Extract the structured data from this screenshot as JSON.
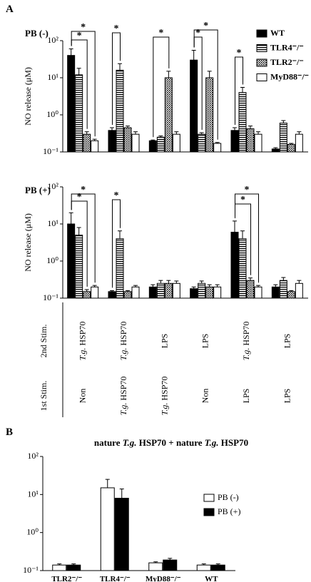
{
  "panel_labels": [
    "A",
    "B"
  ],
  "chart_data": [
    {
      "type": "bar",
      "title": "PB (-)",
      "ylabel": "NO release (μM)",
      "log_scale": true,
      "legend": "upper right",
      "ylim": [
        0.1,
        100
      ],
      "yticks": [
        {
          "value": 0.1,
          "label": "10⁻¹"
        },
        {
          "value": 1,
          "label": "10⁰"
        },
        {
          "value": 10,
          "label": "10¹"
        },
        {
          "value": 100,
          "label": "10²"
        }
      ],
      "series": [
        {
          "name": "WT",
          "color": "#000000",
          "values": [
            40,
            0.38,
            0.2,
            30,
            0.38,
            0.12
          ],
          "errors": [
            20,
            0.07,
            0.01,
            25,
            0.07,
            0.01
          ]
        },
        {
          "name": "TLR4⁻/⁻",
          "color": "#000000",
          "pattern": "hstripe",
          "values": [
            12,
            16,
            0.25,
            0.3,
            4,
            0.6
          ],
          "errors": [
            6,
            8,
            0.02,
            0.03,
            1.5,
            0.1
          ]
        },
        {
          "name": "TLR2⁻/⁻",
          "color": "#000000",
          "pattern": "dots",
          "values": [
            0.3,
            0.45,
            10,
            10,
            0.42,
            0.16
          ],
          "errors": [
            0.05,
            0.05,
            5,
            5,
            0.08,
            0.01
          ]
        },
        {
          "name": "MyD88⁻/⁻",
          "color": "#ffffff",
          "values": [
            0.2,
            0.3,
            0.3,
            0.17,
            0.3,
            0.3
          ],
          "errors": [
            0.02,
            0.05,
            0.05,
            0.01,
            0.05,
            0.05
          ]
        }
      ],
      "annotations": [
        "*",
        "*",
        "*",
        "*",
        "*",
        "*",
        "*"
      ]
    },
    {
      "type": "bar",
      "title": "PB (+)",
      "ylabel": "NO release (μM)",
      "log_scale": true,
      "ylim": [
        0.1,
        100
      ],
      "yticks": [
        {
          "value": 0.1,
          "label": "10⁻¹"
        },
        {
          "value": 1,
          "label": "10⁰"
        },
        {
          "value": 10,
          "label": "10¹"
        },
        {
          "value": 100,
          "label": "10²"
        }
      ],
      "series": [
        {
          "color": "#000000",
          "values": [
            10,
            0.15,
            0.2,
            0.18,
            6,
            0.2
          ],
          "errors": [
            10,
            0.01,
            0.03,
            0.02,
            6,
            0.03
          ]
        },
        {
          "color": "#000000",
          "pattern": "hstripe",
          "values": [
            5,
            4,
            0.25,
            0.25,
            4,
            0.3
          ],
          "errors": [
            3,
            2.5,
            0.05,
            0.04,
            2.5,
            0.06
          ]
        },
        {
          "color": "#000000",
          "pattern": "dots",
          "values": [
            0.15,
            0.15,
            0.25,
            0.2,
            0.3,
            0.15
          ],
          "errors": [
            0.02,
            0.01,
            0.05,
            0.03,
            0.05,
            0.01
          ]
        },
        {
          "color": "#ffffff",
          "values": [
            0.2,
            0.2,
            0.25,
            0.2,
            0.2,
            0.25
          ],
          "errors": [
            0.02,
            0.02,
            0.04,
            0.03,
            0.02,
            0.05
          ]
        }
      ],
      "annotations": [
        "*",
        "*",
        "*",
        "*",
        "*"
      ]
    },
    {
      "type": "bar",
      "title": "nature T.g. HSP70 + nature T.g. HSP70",
      "log_scale": true,
      "legend": "center right",
      "categories": [
        "TLR2⁻/⁻",
        "TLR4⁻/⁻",
        "MyD88⁻/⁻",
        "WT"
      ],
      "ylim": [
        0.1,
        100
      ],
      "yticks": [
        {
          "value": 0.1,
          "label": "10⁻¹"
        },
        {
          "value": 1,
          "label": "10⁰"
        },
        {
          "value": 10,
          "label": "10¹"
        },
        {
          "value": 100,
          "label": "10²"
        }
      ],
      "series": [
        {
          "name": "PB (-)",
          "color": "#ffffff",
          "values": [
            0.14,
            15,
            0.16,
            0.14
          ],
          "errors": [
            0.01,
            10,
            0.01,
            0.01
          ]
        },
        {
          "name": "PB (+)",
          "color": "#000000",
          "values": [
            0.14,
            8,
            0.19,
            0.14
          ],
          "errors": [
            0.01,
            6,
            0.02,
            0.01
          ]
        }
      ]
    }
  ],
  "stimulation": {
    "second_label": "2nd Stim.",
    "second": [
      "T.g. HSP70",
      "T.g. HSP70",
      "LPS",
      "LPS",
      "T.g. HSP70",
      "LPS"
    ],
    "first_label": "1st Stim.",
    "first": [
      "Non",
      "T.g. HSP70",
      "T.g. HSP70",
      "Non",
      "LPS",
      "LPS"
    ]
  }
}
